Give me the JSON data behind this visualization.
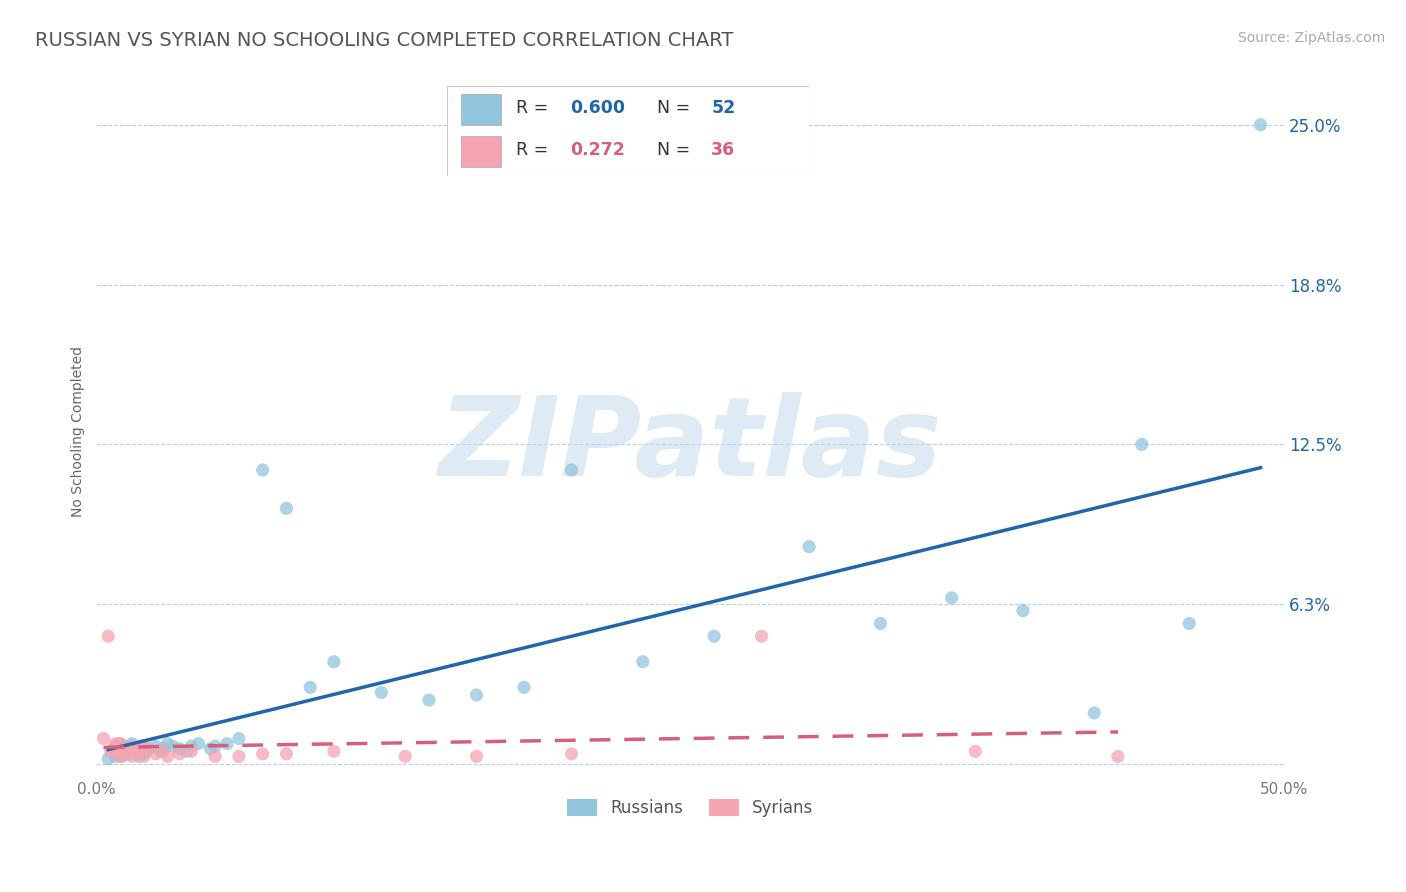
{
  "title": "RUSSIAN VS SYRIAN NO SCHOOLING COMPLETED CORRELATION CHART",
  "source": "Source: ZipAtlas.com",
  "ylabel": "No Schooling Completed",
  "xlim": [
    0.0,
    0.5
  ],
  "ylim": [
    -0.005,
    0.265
  ],
  "xticks": [
    0.0,
    0.5
  ],
  "xtick_labels": [
    "0.0%",
    "50.0%"
  ],
  "yticks": [
    0.0,
    0.0625,
    0.125,
    0.1875,
    0.25
  ],
  "ytick_labels": [
    "",
    "6.3%",
    "12.5%",
    "18.8%",
    "25.0%"
  ],
  "russian_R": 0.6,
  "russian_N": 52,
  "syrian_R": 0.272,
  "syrian_N": 36,
  "russian_color": "#92c5de",
  "syrian_color": "#f4a5b0",
  "russian_line_color": "#2166ac",
  "syrian_line_color": "#d6607a",
  "background_color": "#ffffff",
  "grid_color": "#b8cfe0",
  "watermark": "ZIPatlas",
  "title_color": "#555555",
  "legend_label_russian": "Russians",
  "legend_label_syrian": "Syrians",
  "title_fontsize": 14,
  "axis_label_fontsize": 10,
  "tick_fontsize": 11,
  "source_fontsize": 10,
  "russian_points_x": [
    0.005,
    0.007,
    0.008,
    0.009,
    0.01,
    0.01,
    0.011,
    0.011,
    0.012,
    0.013,
    0.014,
    0.015,
    0.015,
    0.016,
    0.017,
    0.018,
    0.019,
    0.02,
    0.021,
    0.022,
    0.025,
    0.027,
    0.028,
    0.03,
    0.032,
    0.035,
    0.038,
    0.04,
    0.043,
    0.048,
    0.05,
    0.055,
    0.06,
    0.07,
    0.08,
    0.09,
    0.1,
    0.12,
    0.14,
    0.16,
    0.18,
    0.2,
    0.23,
    0.26,
    0.3,
    0.33,
    0.36,
    0.39,
    0.42,
    0.44,
    0.46,
    0.49
  ],
  "russian_points_y": [
    0.002,
    0.005,
    0.003,
    0.004,
    0.008,
    0.006,
    0.007,
    0.003,
    0.005,
    0.006,
    0.004,
    0.008,
    0.007,
    0.005,
    0.006,
    0.003,
    0.007,
    0.004,
    0.005,
    0.006,
    0.007,
    0.005,
    0.006,
    0.008,
    0.007,
    0.006,
    0.005,
    0.007,
    0.008,
    0.006,
    0.007,
    0.008,
    0.01,
    0.115,
    0.1,
    0.03,
    0.04,
    0.028,
    0.025,
    0.027,
    0.03,
    0.115,
    0.04,
    0.05,
    0.085,
    0.055,
    0.065,
    0.06,
    0.02,
    0.125,
    0.055,
    0.25
  ],
  "syrian_points_x": [
    0.003,
    0.005,
    0.006,
    0.007,
    0.008,
    0.008,
    0.009,
    0.01,
    0.01,
    0.011,
    0.012,
    0.013,
    0.014,
    0.015,
    0.016,
    0.017,
    0.018,
    0.019,
    0.02,
    0.022,
    0.025,
    0.028,
    0.03,
    0.035,
    0.04,
    0.05,
    0.06,
    0.07,
    0.08,
    0.1,
    0.13,
    0.16,
    0.2,
    0.28,
    0.37,
    0.43
  ],
  "syrian_points_y": [
    0.01,
    0.05,
    0.005,
    0.006,
    0.007,
    0.008,
    0.005,
    0.003,
    0.008,
    0.006,
    0.004,
    0.005,
    0.007,
    0.003,
    0.006,
    0.004,
    0.005,
    0.007,
    0.003,
    0.006,
    0.004,
    0.005,
    0.003,
    0.004,
    0.005,
    0.003,
    0.003,
    0.004,
    0.004,
    0.005,
    0.003,
    0.003,
    0.004,
    0.05,
    0.005,
    0.003
  ]
}
